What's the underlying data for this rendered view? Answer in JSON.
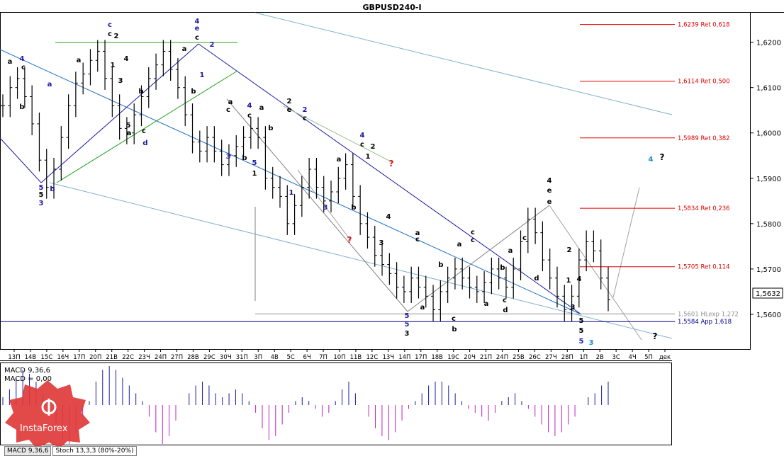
{
  "window": {
    "title": "GBPUSD240-I"
  },
  "chart_data": {
    "type": "candlestick",
    "symbol": "GBPUSD240-I",
    "ylim": [
      1.5525,
      1.6265
    ],
    "y_ticks": [
      "1,6200",
      "1,6100",
      "1,6000",
      "1,5900",
      "1,5800",
      "1,5700",
      "1,5600"
    ],
    "last_price": "1,5632",
    "x_ticks": [
      "13П",
      "14В",
      "15С",
      "16Ч",
      "17П",
      "20П",
      "21В",
      "22С",
      "23Ч",
      "24П",
      "27П",
      "28В",
      "29С",
      "30Ч",
      "31П",
      "3П",
      "4В",
      "5С",
      "6Ч",
      "7П",
      "10П",
      "11В",
      "12С",
      "13Ч",
      "14П",
      "17П",
      "18В",
      "19С",
      "20Ч",
      "21П",
      "24П",
      "25В",
      "26С",
      "27Ч",
      "28П",
      "1П",
      "2В",
      "3С",
      "4Ч",
      "5П",
      "дек"
    ],
    "levels": [
      {
        "price": 1.6239,
        "label": "1,6239 Ret 0,618",
        "color": "#e00000"
      },
      {
        "price": 1.6114,
        "label": "1,6114 Ret 0,500",
        "color": "#e00000"
      },
      {
        "price": 1.5989,
        "label": "1,5989 Ret 0,382",
        "color": "#e00000"
      },
      {
        "price": 1.5834,
        "label": "1,5834 Ret 0,236",
        "color": "#e00000"
      },
      {
        "price": 1.5705,
        "label": "1,5705 Ret 0,114",
        "color": "#e00000"
      },
      {
        "price": 1.5601,
        "label": "1,5601 HLexp 1,272",
        "color": "#909090"
      },
      {
        "price": 1.5584,
        "label": "1,5584 App 1,618",
        "color": "#00008b"
      }
    ],
    "closes": [
      1.606,
      1.61,
      1.612,
      1.608,
      1.602,
      1.594,
      1.588,
      1.592,
      1.599,
      1.606,
      1.611,
      1.613,
      1.616,
      1.618,
      1.612,
      1.606,
      1.601,
      1.6,
      1.604,
      1.608,
      1.612,
      1.615,
      1.618,
      1.614,
      1.61,
      1.604,
      1.598,
      1.596,
      1.599,
      1.596,
      1.593,
      1.595,
      1.597,
      1.599,
      1.601,
      1.599,
      1.59,
      1.588,
      1.586,
      1.58,
      1.584,
      1.588,
      1.592,
      1.588,
      1.585,
      1.587,
      1.59,
      1.593,
      1.586,
      1.58,
      1.577,
      1.573,
      1.571,
      1.569,
      1.566,
      1.565,
      1.568,
      1.566,
      1.564,
      1.561,
      1.565,
      1.568,
      1.57,
      1.568,
      1.566,
      1.565,
      1.567,
      1.57,
      1.568,
      1.566,
      1.57,
      1.576,
      1.581,
      1.578,
      1.572,
      1.568,
      1.564,
      1.561,
      1.564,
      1.572,
      1.576,
      1.574,
      1.568,
      1.5632
    ],
    "wave_labels": [
      {
        "t": "4",
        "x": 31,
        "y": 86,
        "c": "#1a1aa0"
      },
      {
        "t": "a",
        "x": 14,
        "y": 90,
        "c": "#000"
      },
      {
        "t": "c",
        "x": 33,
        "y": 98,
        "c": "#000"
      },
      {
        "t": "b",
        "x": 31,
        "y": 154,
        "c": "#000"
      },
      {
        "t": "a",
        "x": 70,
        "y": 122,
        "c": "#1a1aa0"
      },
      {
        "t": "5",
        "x": 58,
        "y": 268,
        "c": "#1a1aa0"
      },
      {
        "t": "5",
        "x": 58,
        "y": 278,
        "c": "#000"
      },
      {
        "t": "3",
        "x": 58,
        "y": 290,
        "c": "#1a1aa0"
      },
      {
        "t": "b",
        "x": 74,
        "y": 270,
        "c": "#1a1aa0"
      },
      {
        "t": "c",
        "x": 155,
        "y": 38,
        "c": "#1a1aa0"
      },
      {
        "t": "c",
        "x": 155,
        "y": 51,
        "c": "#000"
      },
      {
        "t": "2",
        "x": 164,
        "y": 54,
        "c": "#000"
      },
      {
        "t": "a",
        "x": 111,
        "y": 88,
        "c": "#000"
      },
      {
        "t": "1",
        "x": 159,
        "y": 95,
        "c": "#000"
      },
      {
        "t": "4",
        "x": 178,
        "y": 86,
        "c": "#000"
      },
      {
        "t": "3",
        "x": 170,
        "y": 117,
        "c": "#000"
      },
      {
        "t": "b",
        "x": 199,
        "y": 132,
        "c": "#000"
      },
      {
        "t": "5",
        "x": 181,
        "y": 180,
        "c": "#000"
      },
      {
        "t": "a",
        "x": 182,
        "y": 191,
        "c": "#000"
      },
      {
        "t": "c",
        "x": 203,
        "y": 188,
        "c": "#000"
      },
      {
        "t": "d",
        "x": 205,
        "y": 205,
        "c": "#1a1aa0"
      },
      {
        "t": "4",
        "x": 278,
        "y": 33,
        "c": "#1a1aa0"
      },
      {
        "t": "e",
        "x": 278,
        "y": 43,
        "c": "#1a1aa0"
      },
      {
        "t": "c",
        "x": 278,
        "y": 56,
        "c": "#000"
      },
      {
        "t": "2",
        "x": 299,
        "y": 66,
        "c": "#1a1aa0"
      },
      {
        "t": "1",
        "x": 285,
        "y": 109,
        "c": "#1a1aa0"
      },
      {
        "t": "b",
        "x": 273,
        "y": 132,
        "c": "#000"
      },
      {
        "t": "a",
        "x": 260,
        "y": 72,
        "c": "#000"
      },
      {
        "t": "a",
        "x": 325,
        "y": 147,
        "c": "#000"
      },
      {
        "t": "c",
        "x": 322,
        "y": 158,
        "c": "#000"
      },
      {
        "t": "3",
        "x": 322,
        "y": 224,
        "c": "#1a1aa0"
      },
      {
        "t": "4",
        "x": 352,
        "y": 152,
        "c": "#1a1aa0"
      },
      {
        "t": "a",
        "x": 369,
        "y": 155,
        "c": "#000"
      },
      {
        "t": "c",
        "x": 352,
        "y": 166,
        "c": "#000"
      },
      {
        "t": "b",
        "x": 382,
        "y": 184,
        "c": "#000"
      },
      {
        "t": "b",
        "x": 345,
        "y": 226,
        "c": "#000"
      },
      {
        "t": "5",
        "x": 359,
        "y": 233,
        "c": "#1a1aa0"
      },
      {
        "t": "1",
        "x": 359,
        "y": 248,
        "c": "#000"
      },
      {
        "t": "2",
        "x": 408,
        "y": 146,
        "c": "#000"
      },
      {
        "t": "e",
        "x": 408,
        "y": 158,
        "c": "#000"
      },
      {
        "t": "2",
        "x": 430,
        "y": 158,
        "c": "#1a1aa0"
      },
      {
        "t": "c",
        "x": 430,
        "y": 170,
        "c": "#000"
      },
      {
        "t": "1",
        "x": 411,
        "y": 275,
        "c": "#1a1aa0"
      },
      {
        "t": "3",
        "x": 459,
        "y": 296,
        "c": "#1a1aa0"
      },
      {
        "t": "a",
        "x": 478,
        "y": 228,
        "c": "#000"
      },
      {
        "t": "b",
        "x": 499,
        "y": 296,
        "c": "#000"
      },
      {
        "t": "4",
        "x": 511,
        "y": 194,
        "c": "#1a1aa0"
      },
      {
        "t": "c",
        "x": 511,
        "y": 207,
        "c": "#000"
      },
      {
        "t": "2",
        "x": 526,
        "y": 210,
        "c": "#000"
      },
      {
        "t": "1",
        "x": 519,
        "y": 224,
        "c": "#000"
      },
      {
        "t": "?",
        "x": 552,
        "y": 235,
        "c": "#d02020"
      },
      {
        "t": "?",
        "x": 493,
        "y": 343,
        "c": "#d02020"
      },
      {
        "t": "4",
        "x": 548,
        "y": 309,
        "c": "#000"
      },
      {
        "t": "3",
        "x": 538,
        "y": 346,
        "c": "#000"
      },
      {
        "t": "a",
        "x": 589,
        "y": 332,
        "c": "#000"
      },
      {
        "t": "c",
        "x": 589,
        "y": 341,
        "c": "#000"
      },
      {
        "t": "a",
        "x": 596,
        "y": 437,
        "c": "#000"
      },
      {
        "t": "5",
        "x": 574,
        "y": 449,
        "c": "#1a1aa0"
      },
      {
        "t": "5",
        "x": 574,
        "y": 461,
        "c": "#1a1aa0"
      },
      {
        "t": "3",
        "x": 574,
        "y": 474,
        "c": "#000"
      },
      {
        "t": "c",
        "x": 667,
        "y": 331,
        "c": "#000"
      },
      {
        "t": "c",
        "x": 667,
        "y": 342,
        "c": "#000"
      },
      {
        "t": "a",
        "x": 648,
        "y": 348,
        "c": "#000"
      },
      {
        "t": "b",
        "x": 622,
        "y": 377,
        "c": "#000"
      },
      {
        "t": "a",
        "x": 686,
        "y": 432,
        "c": "#000"
      },
      {
        "t": "c",
        "x": 712,
        "y": 427,
        "c": "#000"
      },
      {
        "t": "d",
        "x": 713,
        "y": 441,
        "c": "#000"
      },
      {
        "t": "c",
        "x": 640,
        "y": 453,
        "c": "#000"
      },
      {
        "t": "b",
        "x": 641,
        "y": 468,
        "c": "#000"
      },
      {
        "t": "a",
        "x": 720,
        "y": 357,
        "c": "#000"
      },
      {
        "t": "b",
        "x": 709,
        "y": 381,
        "c": "#000"
      },
      {
        "t": "c",
        "x": 740,
        "y": 339,
        "c": "#000"
      },
      {
        "t": "d",
        "x": 757,
        "y": 396,
        "c": "#000"
      },
      {
        "t": "4",
        "x": 775,
        "y": 258,
        "c": "#000"
      },
      {
        "t": "e",
        "x": 775,
        "y": 272,
        "c": "#000"
      },
      {
        "t": "e",
        "x": 775,
        "y": 288,
        "c": "#000"
      },
      {
        "t": "2",
        "x": 803,
        "y": 356,
        "c": "#000"
      },
      {
        "t": "1",
        "x": 802,
        "y": 399,
        "c": "#000"
      },
      {
        "t": "4",
        "x": 817,
        "y": 397,
        "c": "#000"
      },
      {
        "t": "3",
        "x": 808,
        "y": 437,
        "c": "#000"
      },
      {
        "t": "5",
        "x": 820,
        "y": 456,
        "c": "#000"
      },
      {
        "t": "5",
        "x": 820,
        "y": 470,
        "c": "#000"
      },
      {
        "t": "5",
        "x": 820,
        "y": 485,
        "c": "#1a1aa0"
      },
      {
        "t": "3",
        "x": 834,
        "y": 487,
        "c": "#1e90c0"
      },
      {
        "t": "4",
        "x": 918,
        "y": 228,
        "c": "#1e90c0"
      },
      {
        "t": "?",
        "x": 934,
        "y": 226,
        "c": "#000"
      },
      {
        "t": "?",
        "x": 924,
        "y": 479,
        "c": "#000"
      }
    ],
    "macd": {
      "label": "MACD 9,36,6",
      "value_label": "MACD = 0,00",
      "values": [
        0.2,
        0.4,
        0.7,
        0.9,
        0.8,
        0.6,
        0.3,
        -0.1,
        -0.5,
        -0.9,
        -1.0,
        -0.7,
        -0.3,
        0.1,
        0.6,
        0.9,
        1.0,
        0.9,
        0.7,
        0.5,
        0.3,
        0.1,
        -0.3,
        -0.7,
        -1.0,
        -0.8,
        -0.4,
        0.0,
        0.3,
        0.5,
        0.6,
        0.5,
        0.3,
        0.2,
        0.3,
        0.4,
        0.3,
        0.1,
        -0.2,
        -0.6,
        -0.9,
        -0.8,
        -0.5,
        -0.2,
        0.1,
        0.2,
        0.1,
        -0.1,
        -0.3,
        -0.2,
        0.1,
        0.4,
        0.6,
        0.3,
        0.0,
        -0.3,
        -0.6,
        -0.8,
        -0.9,
        -0.7,
        -0.4,
        -0.1,
        0.1,
        0.3,
        0.5,
        0.6,
        0.6,
        0.5,
        0.3,
        0.1,
        -0.1,
        -0.2,
        -0.3,
        -0.4,
        -0.2,
        0.1,
        0.2,
        0.3,
        0.1,
        -0.1,
        -0.3,
        -0.5,
        -0.7,
        -0.8,
        -0.7,
        -0.5,
        -0.3,
        0.0,
        0.2,
        0.3,
        0.5,
        0.6
      ]
    }
  },
  "tabs": [
    {
      "label": "MACD 9,36,6"
    },
    {
      "label": "Stoch 13,3,3 (80%-20%)"
    }
  ],
  "brand": {
    "name": "InstaForex",
    "color": "#e03a3a"
  }
}
